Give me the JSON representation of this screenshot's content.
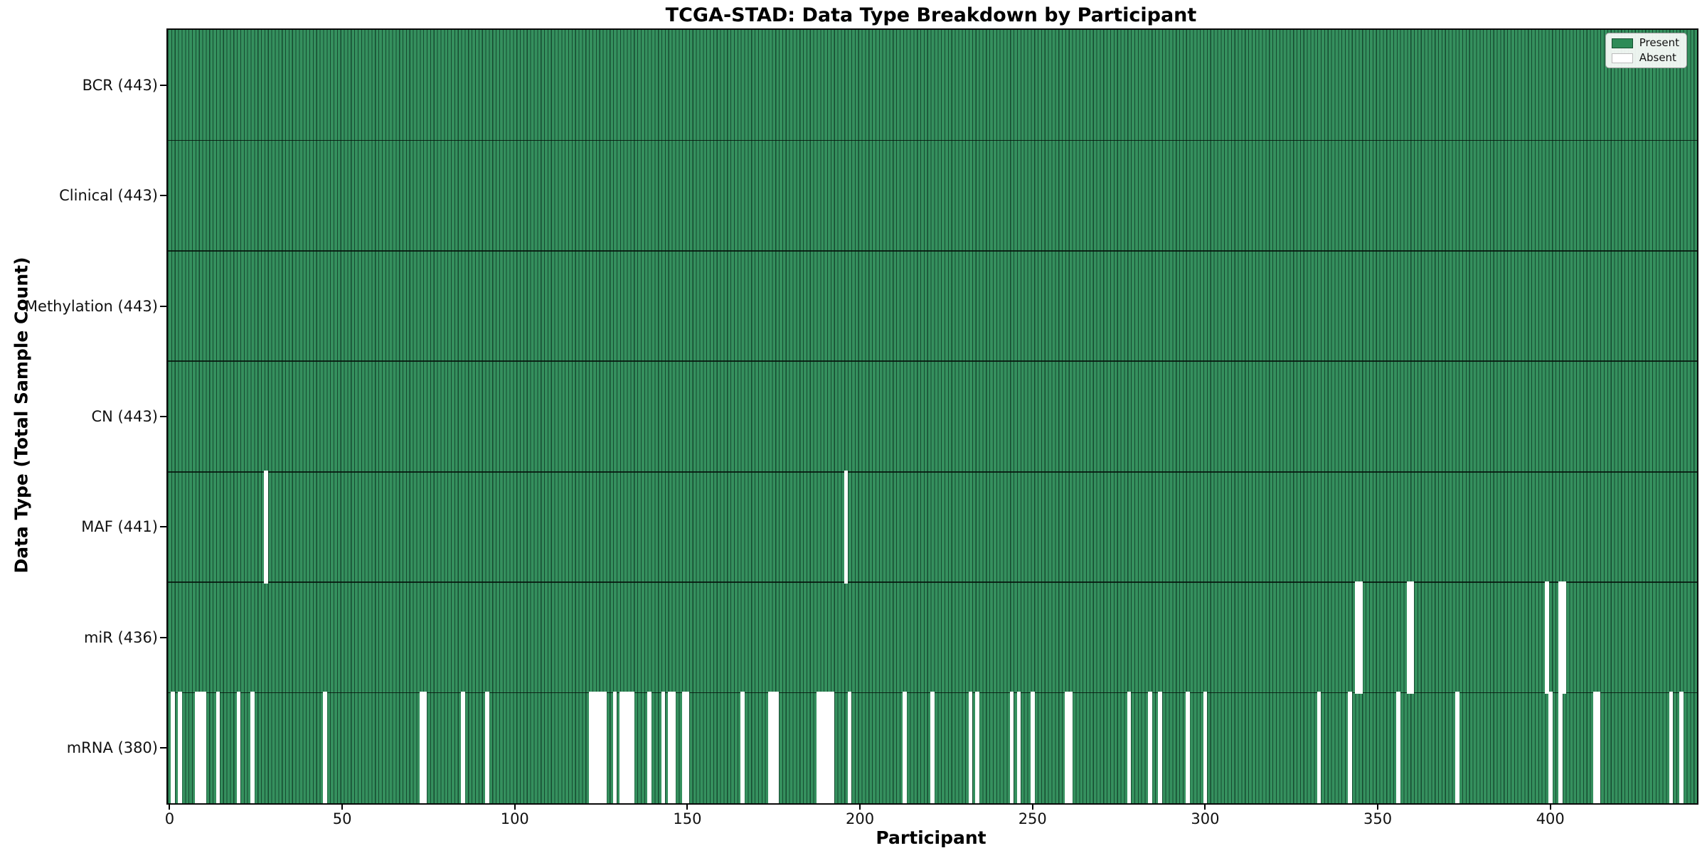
{
  "figure": {
    "title": "TCGA-STAD: Data Type Breakdown by Participant",
    "xlabel": "Participant",
    "ylabel": "Data Type (Total Sample Count)"
  },
  "chart_data": {
    "type": "heatmap",
    "title": "TCGA-STAD: Data Type Breakdown by Participant",
    "xlabel": "Participant",
    "ylabel": "Data Type (Total Sample Count)",
    "x_ticks": [
      0,
      50,
      100,
      150,
      200,
      250,
      300,
      350,
      400
    ],
    "xlim": [
      -0.5,
      442.5
    ],
    "n_participants": 443,
    "grid": false,
    "legend_position": "upper right",
    "legend": [
      {
        "label": "Present",
        "color": "#2e8b57"
      },
      {
        "label": "Absent",
        "color": "#ffffff"
      }
    ],
    "colors": {
      "present": "#35905e",
      "absent": "#ffffff",
      "bar_edge": "#103e28",
      "plot_border": "#0a0a0a"
    },
    "rows": [
      {
        "category": "BCR",
        "label": "BCR (443)",
        "present_count": 443,
        "absent_participants": []
      },
      {
        "category": "Clinical",
        "label": "Clinical (443)",
        "present_count": 443,
        "absent_participants": []
      },
      {
        "category": "Methylation",
        "label": "Methylation (443)",
        "present_count": 443,
        "absent_participants": []
      },
      {
        "category": "CN",
        "label": "CN (443)",
        "present_count": 443,
        "absent_participants": []
      },
      {
        "category": "MAF",
        "label": "MAF (441)",
        "present_count": 441,
        "absent_participants": [
          28,
          196
        ]
      },
      {
        "category": "miR",
        "label": "miR (436)",
        "present_count": 436,
        "absent_participants": [
          344,
          345,
          359,
          360,
          399,
          403,
          404
        ]
      },
      {
        "category": "mRNA",
        "label": "mRNA (380)",
        "present_count": 380,
        "absent_participants": [
          1,
          3,
          8,
          9,
          10,
          14,
          20,
          24,
          45,
          73,
          74,
          85,
          92,
          122,
          123,
          124,
          125,
          126,
          129,
          131,
          132,
          133,
          134,
          139,
          143,
          145,
          146,
          149,
          150,
          166,
          174,
          175,
          176,
          188,
          189,
          190,
          191,
          192,
          197,
          213,
          221,
          232,
          234,
          244,
          246,
          250,
          260,
          261,
          278,
          284,
          287,
          295,
          300,
          333,
          342,
          356,
          373,
          400,
          403,
          413,
          414,
          435,
          438
        ]
      }
    ]
  }
}
